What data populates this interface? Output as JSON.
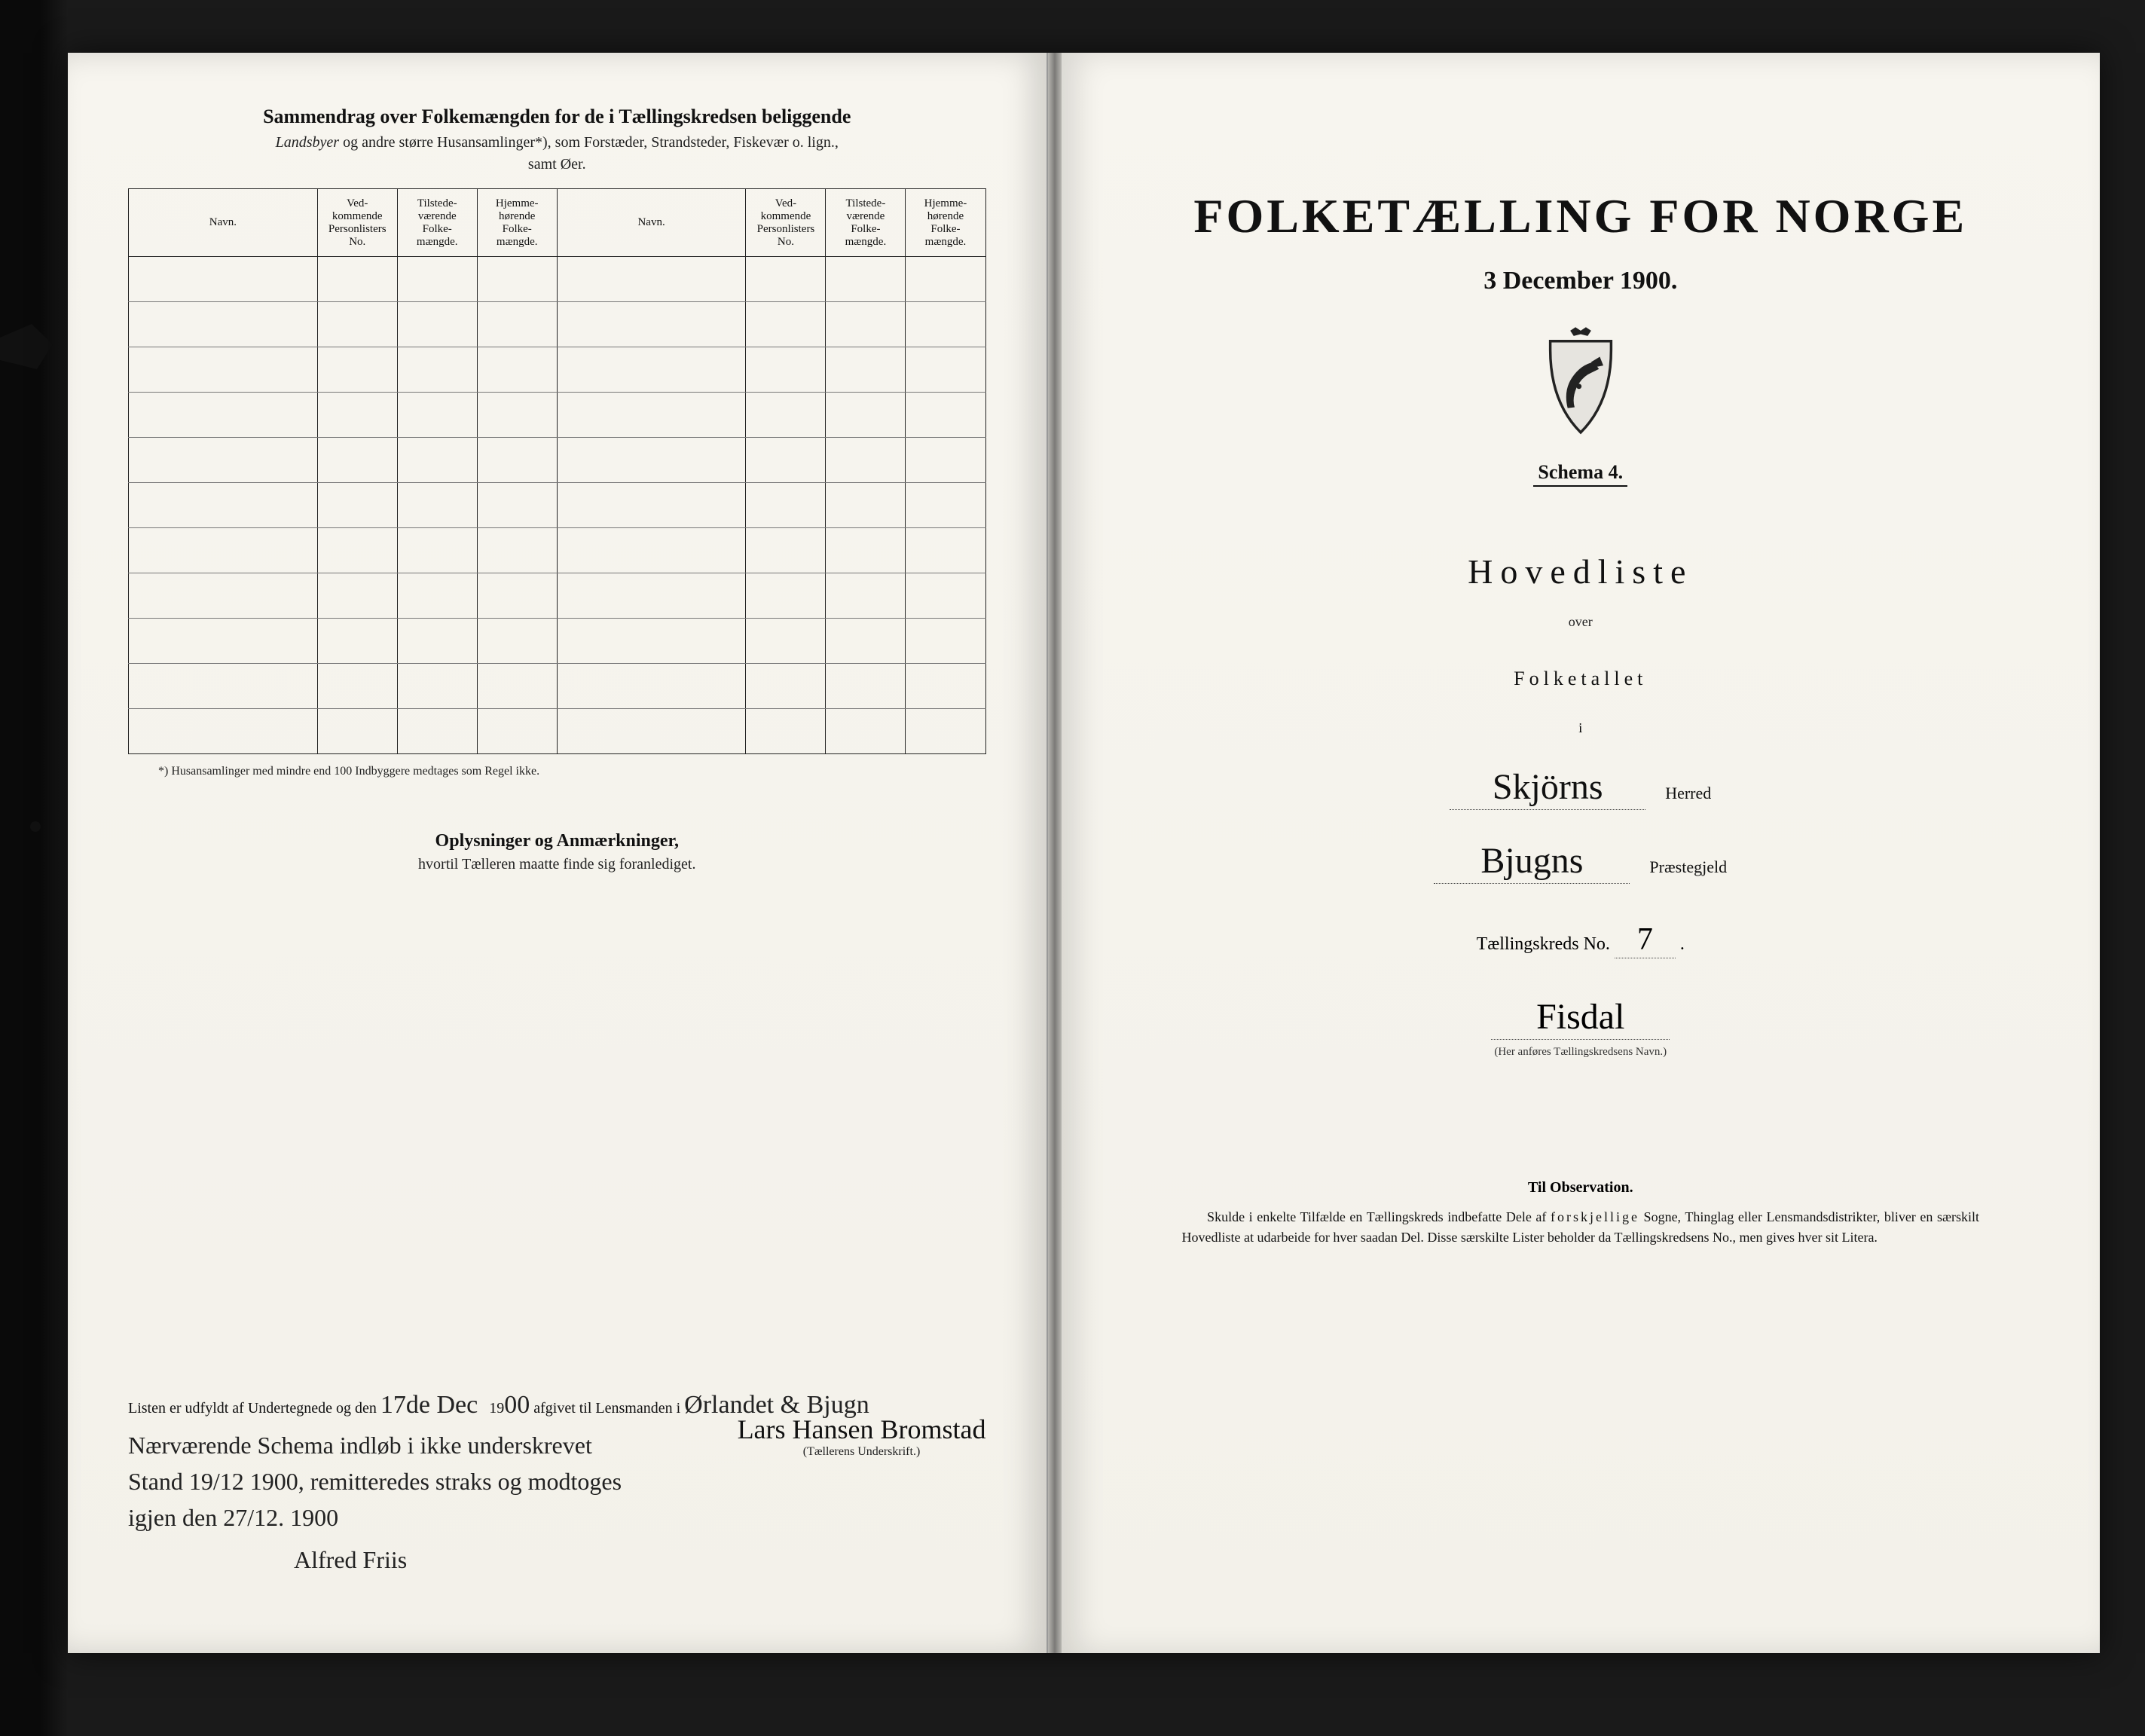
{
  "left": {
    "title": "Sammendrag over Folkemængden for de i Tællingskredsen beliggende",
    "subtitle_prefix_italic": "Landsbyer",
    "subtitle_rest": " og andre større Husansamlinger*), som Forstæder, Strandsteder, Fiskevær o. lign.,",
    "subtitle_line2": "samt Øer.",
    "headers": {
      "navn": "Navn.",
      "vedk": "Ved-\nkommende\nPersonlisters\nNo.",
      "tilstede": "Tilstede-\nværende\nFolke-\nmængde.",
      "hjemme": "Hjemme-\nhørende\nFolke-\nmængde."
    },
    "footnote": "*) Husansamlinger med mindre end 100 Indbyggere medtages som Regel ikke.",
    "oplysninger_title": "Oplysninger og Anmærkninger,",
    "oplysninger_sub": "hvortil Tælleren maatte finde sig foranlediget.",
    "sig_prefix": "Listen er udfyldt af Undertegnede og den",
    "sig_date_hw": "17de Dec",
    "sig_year_prefix": "19",
    "sig_year_hw": "00",
    "sig_mid": " afgivet til Lensmanden i",
    "sig_lensmand_hw": "Ørlandet & Bjugn",
    "sig_note_hw": "Nærværende Schema indløb i ikke underskrevet Stand 19/12 1900, remitteredes straks og modtoges igjen den 27/12. 1900",
    "sig_name_hw": "Alfred Friis",
    "taller_name_hw": "Lars Hansen Bromstad",
    "taller_label": "(Tællerens Underskrift.)"
  },
  "right": {
    "title": "FOLKETÆLLING FOR NORGE",
    "date": "3 December 1900.",
    "schema": "Schema 4.",
    "hovedliste": "Hovedliste",
    "over": "over",
    "folketallet": "Folketallet",
    "i": "i",
    "herred_hw": "Skjörns",
    "herred_lbl": "Herred",
    "praestegjeld_hw": "Bjugns",
    "praestegjeld_lbl": "Præstegjeld",
    "kreds_prefix": "Tællingskreds No.",
    "kreds_no_hw": "7",
    "kreds_name_hw": "Fisdal",
    "kreds_caption": "(Her anføres Tællingskredsens Navn.)",
    "til_obs": "Til Observation.",
    "obs_text": "Skulde i enkelte Tilfælde en Tællingskreds indbefatte Dele af forskjellige Sogne, Thinglag eller Lensmandsdistrikter, bliver en særskilt Hovedliste at udarbeide for hver saadan Del. Disse særskilte Lister beholder da Tællingskredsens No., men gives hver sit Litera."
  },
  "colors": {
    "paper": "#f5f3ed",
    "ink": "#111111",
    "rule": "#222222",
    "faint_rule": "#777777",
    "bg": "#0a0a0a"
  },
  "layout": {
    "table_rows": 11,
    "table_col_groups": 2
  }
}
